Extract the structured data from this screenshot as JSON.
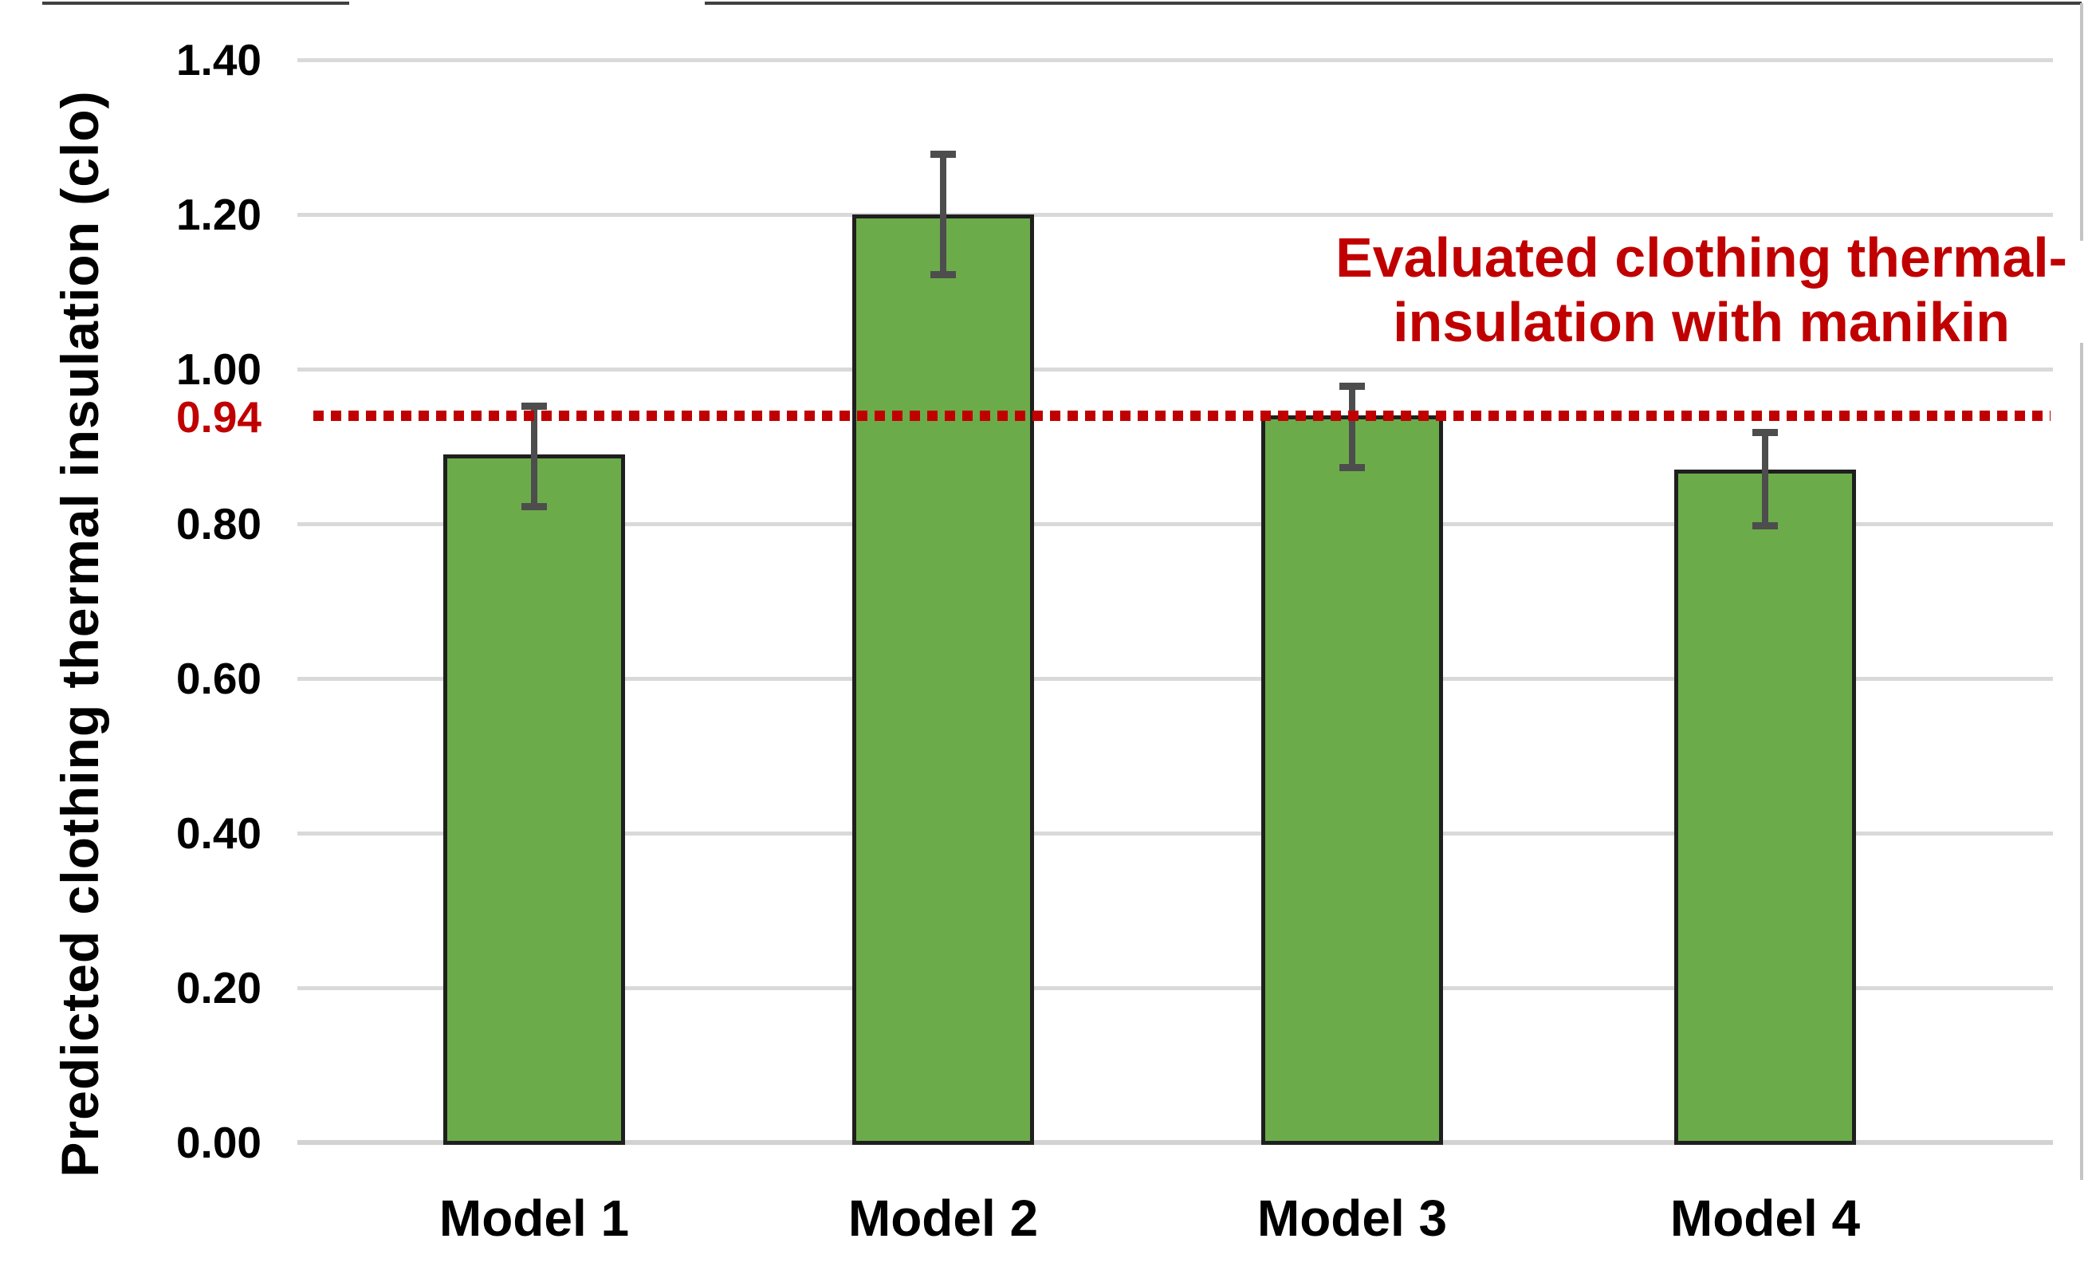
{
  "chart_data": {
    "type": "bar",
    "title": "",
    "categories": [
      "Model 1",
      "Model 2",
      "Model 3",
      "Model 4"
    ],
    "values": [
      0.89,
      1.2,
      0.94,
      0.87
    ],
    "series": [
      {
        "name": "Predicted clothing thermal insulation",
        "values": [
          0.89,
          1.2,
          0.94,
          0.87
        ],
        "error_high": [
          0.95,
          1.275,
          0.975,
          0.915
        ],
        "error_low": [
          0.825,
          1.125,
          0.875,
          0.8
        ]
      }
    ],
    "xlabel": "",
    "ylabel": "Predicted clothing thermal insulation (clo)",
    "ylim": [
      0.0,
      1.4
    ],
    "ytick_step": 0.2,
    "ytick_labels": [
      "1.40",
      "1.20",
      "1.00",
      "0.80",
      "0.60",
      "0.40",
      "0.20",
      "0.00"
    ],
    "grid": true,
    "legend": "none",
    "reference_line": {
      "value": 0.94,
      "label": "0.94",
      "style": "dotted",
      "annotation_line1": "Evaluated clothing thermal-",
      "annotation_line2": "insulation with manikin"
    },
    "colors": {
      "bar_fill": "#6cab4a",
      "bar_border": "#1f1f1f",
      "error_bar": "#4d4d4d",
      "reference_red": "#c00000",
      "gridline": "#d9d9d9",
      "baseline": "#d2d2d2",
      "text": "#000000",
      "frame_top": "#404040",
      "frame_right": "#c4c4c4"
    }
  }
}
